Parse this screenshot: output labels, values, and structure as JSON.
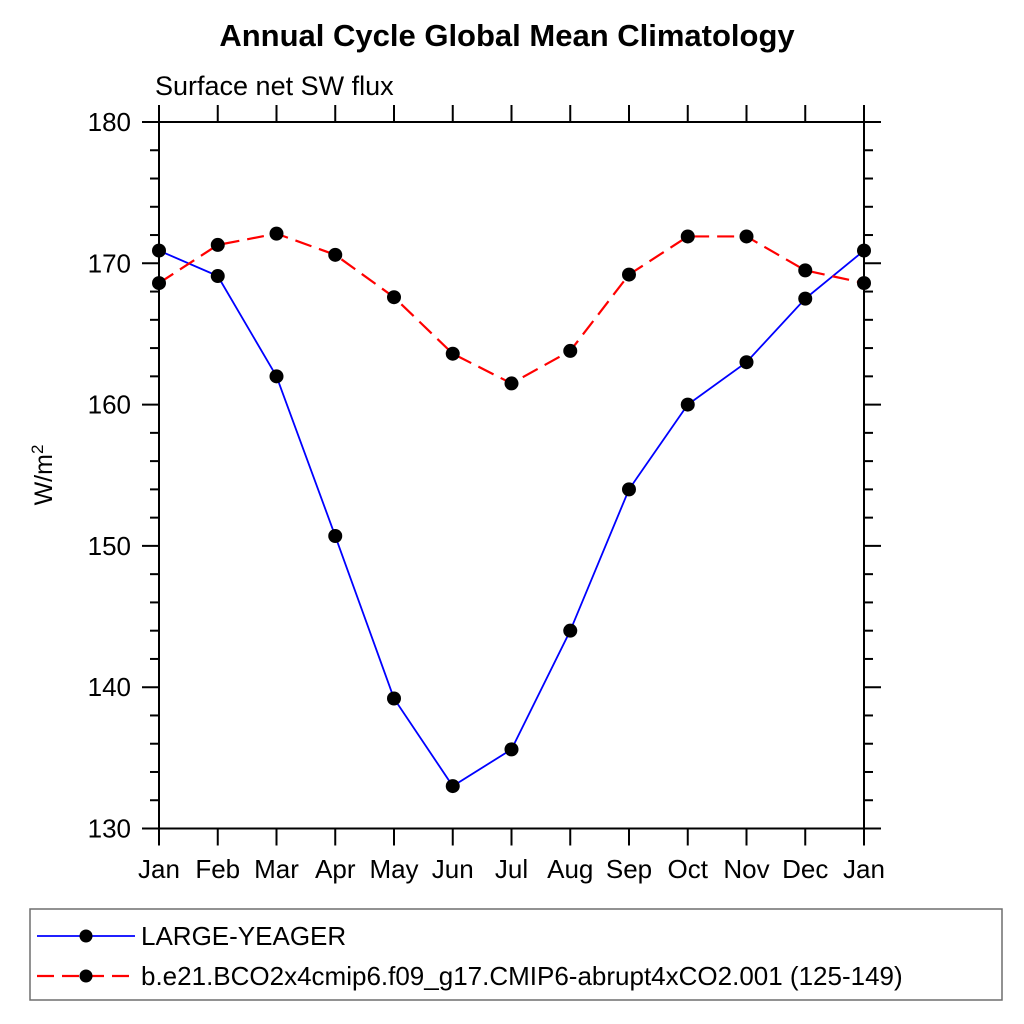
{
  "chart_data": {
    "type": "line",
    "title": "Annual Cycle Global Mean Climatology",
    "subtitle": "Surface net SW flux",
    "ylabel": "W/m²",
    "categories": [
      "Jan",
      "Feb",
      "Mar",
      "Apr",
      "May",
      "Jun",
      "Jul",
      "Aug",
      "Sep",
      "Oct",
      "Nov",
      "Dec",
      "Jan"
    ],
    "ylim": [
      130,
      180
    ],
    "y_major_step": 10,
    "y_minor_step": 2,
    "grid": false,
    "legend_position": "bottom-left",
    "axis_color": "#000000",
    "series": [
      {
        "name": "LARGE-YEAGER",
        "line_color": "#0000ff",
        "line_style": "solid",
        "marker": "filled-circle",
        "marker_color": "#000000",
        "values": [
          170.9,
          169.1,
          162.0,
          150.7,
          139.2,
          133.0,
          135.6,
          144.0,
          154.0,
          160.0,
          163.0,
          167.5,
          170.9
        ]
      },
      {
        "name": "b.e21.BCO2x4cmip6.f09_g17.CMIP6-abrupt4xCO2.001 (125-149)",
        "line_color": "#ff0000",
        "line_style": "dashed",
        "marker": "filled-circle",
        "marker_color": "#000000",
        "values": [
          168.6,
          171.3,
          172.1,
          170.6,
          167.6,
          163.6,
          161.5,
          163.8,
          169.2,
          171.9,
          171.9,
          169.5,
          168.6
        ]
      }
    ]
  }
}
